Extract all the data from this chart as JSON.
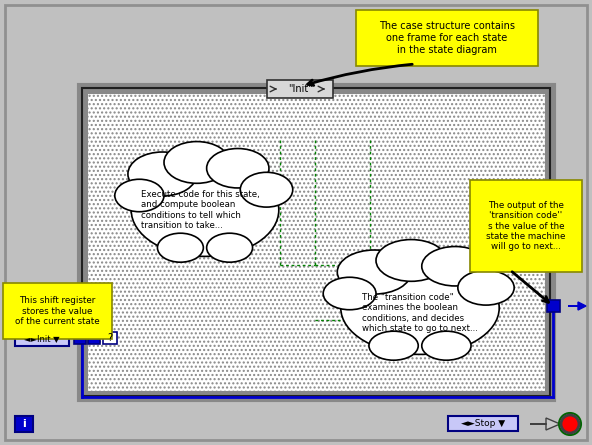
{
  "bg_color": "#c0c0c0",
  "panel_bg": "#c0c0c0",
  "inner_bg": "#ffffff",
  "blue_color": "#0000cc",
  "dark_blue": "#000080",
  "yellow_bg": "#ffff00",
  "annotation1": "The case structure contains\none frame for each state\nin the state diagram",
  "annotation2": "The output of the\n'transition code''\ns the value of the\nstate the machine\nwill go to next...",
  "annotation3": "This shift register\nstores the value\nof the current state",
  "cloud1_text": "Execute code for this state,\nand compute boolean\nconditions to tell which\ntransition to take...",
  "cloud2_text": "The \"transition code\"\nexamines the boolean\nconditions, and decides\nwhich state to go to next...",
  "init_label": "\"Init\"",
  "stop_label": "◄►Stop ▼",
  "wire_color": "#008000",
  "arrow_color": "#000000"
}
